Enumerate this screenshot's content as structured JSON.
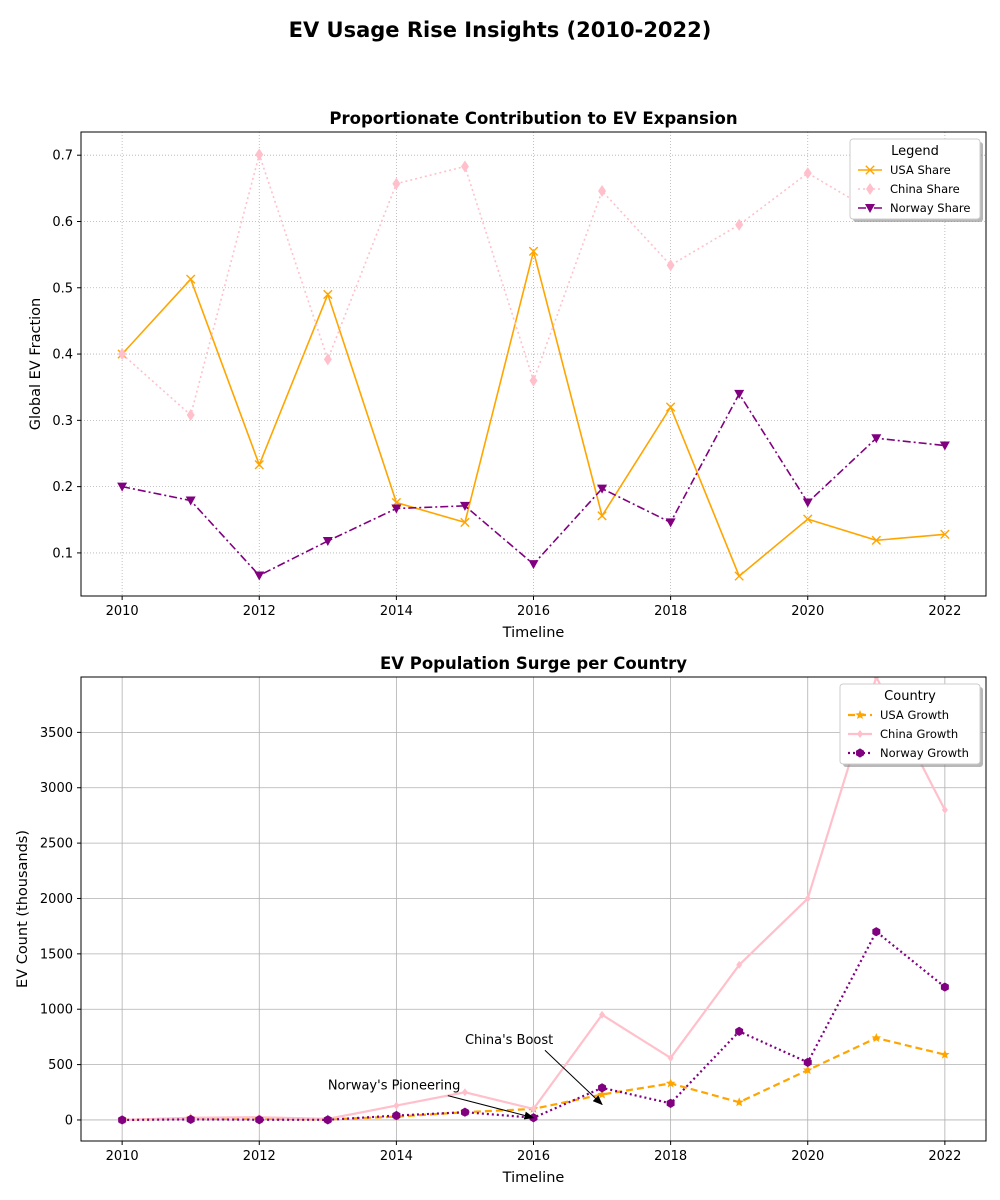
{
  "figure": {
    "title": "EV Usage Rise Insights (2010-2022)"
  },
  "chart_data": [
    {
      "type": "line",
      "title": "Proportionate Contribution to EV Expansion",
      "xlabel": "Timeline",
      "ylabel": "Global EV Fraction",
      "x": [
        2010,
        2011,
        2012,
        2013,
        2014,
        2015,
        2016,
        2017,
        2018,
        2019,
        2020,
        2021,
        2022
      ],
      "xlim": [
        2009.4,
        2022.6
      ],
      "ylim": [
        0.035,
        0.735
      ],
      "xticks": [
        2010,
        2012,
        2014,
        2016,
        2018,
        2020,
        2022
      ],
      "yticks": [
        0.1,
        0.2,
        0.3,
        0.4,
        0.5,
        0.6,
        0.7
      ],
      "ytick_labels": [
        "0.1",
        "0.2",
        "0.3",
        "0.4",
        "0.5",
        "0.6",
        "0.7"
      ],
      "grid": "dotted",
      "legend": {
        "title": "Legend",
        "placement": "top-right"
      },
      "series": [
        {
          "name": "USA Share",
          "color": "#FFA500",
          "marker": "x",
          "dash": "solid",
          "values": [
            0.4,
            0.513,
            0.233,
            0.49,
            0.176,
            0.146,
            0.555,
            0.156,
            0.32,
            0.065,
            0.151,
            0.119,
            0.128
          ]
        },
        {
          "name": "China Share",
          "color": "#FFC0CB",
          "marker": "diamond",
          "dash": "dotted",
          "values": [
            0.4,
            0.308,
            0.701,
            0.392,
            0.657,
            0.683,
            0.36,
            0.646,
            0.534,
            0.595,
            0.673,
            0.612,
            0.611
          ]
        },
        {
          "name": "Norway Share",
          "color": "#800080",
          "marker": "triangle-down",
          "dash": "dashdot",
          "values": [
            0.2,
            0.179,
            0.066,
            0.118,
            0.167,
            0.171,
            0.083,
            0.197,
            0.146,
            0.34,
            0.176,
            0.273,
            0.262
          ]
        }
      ]
    },
    {
      "type": "line",
      "title": "EV Population Surge per Country",
      "xlabel": "Timeline",
      "ylabel": "EV Count (thousands)",
      "x": [
        2010,
        2011,
        2012,
        2013,
        2014,
        2015,
        2016,
        2017,
        2018,
        2019,
        2020,
        2021,
        2022
      ],
      "xlim": [
        2009.4,
        2022.6
      ],
      "ylim": [
        -190,
        4000
      ],
      "xticks": [
        2010,
        2012,
        2014,
        2016,
        2018,
        2020,
        2022
      ],
      "yticks": [
        0,
        500,
        1000,
        1500,
        2000,
        2500,
        3000,
        3500
      ],
      "ytick_labels": [
        "0",
        "500",
        "1000",
        "1500",
        "2000",
        "2500",
        "3000",
        "3500"
      ],
      "grid": "solid",
      "legend": {
        "title": "Country",
        "placement": "top-right"
      },
      "series": [
        {
          "name": "USA Growth",
          "color": "#FFA500",
          "marker": "star",
          "dash": "dashed",
          "values": [
            0,
            17,
            10,
            5,
            30,
            70,
            100,
            230,
            330,
            160,
            450,
            740,
            590
          ]
        },
        {
          "name": "China Growth",
          "color": "#FFC0CB",
          "marker": "diamond-small",
          "dash": "solid",
          "values": [
            0,
            20,
            25,
            10,
            130,
            250,
            100,
            950,
            560,
            1400,
            2000,
            4000,
            2800
          ]
        },
        {
          "name": "Norway Growth",
          "color": "#800080",
          "marker": "hexagon",
          "dash": "dotted",
          "values": [
            0,
            5,
            2,
            1,
            40,
            70,
            20,
            290,
            150,
            800,
            520,
            1700,
            1200
          ]
        }
      ],
      "annotations": [
        {
          "text": "Norway's Pioneering",
          "text_x": 2013,
          "text_y": 310,
          "target_x": 2016,
          "target_y": 20
        },
        {
          "text": "China's Boost",
          "text_x": 2015,
          "text_y": 720,
          "target_x": 2017,
          "target_y": 140
        }
      ]
    }
  ]
}
